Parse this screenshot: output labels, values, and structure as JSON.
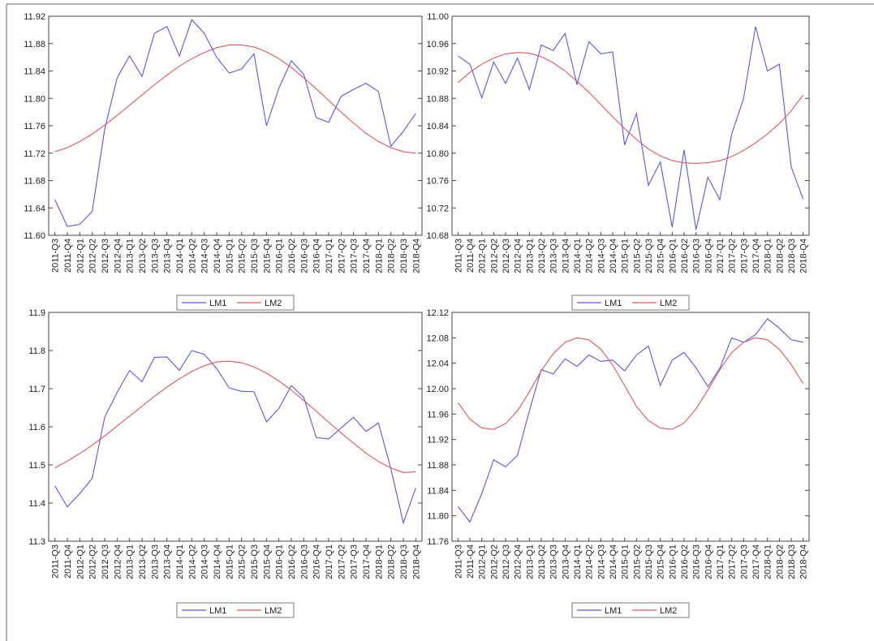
{
  "chart_data": [
    {
      "type": "line",
      "categories": [
        "2011-Q3",
        "2011-Q4",
        "2012-Q1",
        "2012-Q2",
        "2012-Q3",
        "2012-Q4",
        "2013-Q1",
        "2013-Q2",
        "2013-Q3",
        "2013-Q4",
        "2014-Q1",
        "2014-Q2",
        "2014-Q3",
        "2014-Q4",
        "2015-Q1",
        "2015-Q2",
        "2015-Q3",
        "2015-Q4",
        "2016-Q1",
        "2016-Q2",
        "2016-Q3",
        "2016-Q4",
        "2017-Q1",
        "2017-Q2",
        "2017-Q3",
        "2017-Q4",
        "2018-Q1",
        "2018-Q2",
        "2018-Q3",
        "2018-Q4"
      ],
      "series": [
        {
          "name": "LM1",
          "color": "#5858e8",
          "values": [
            11.652,
            11.613,
            11.616,
            11.635,
            11.755,
            11.83,
            11.862,
            11.832,
            11.895,
            11.905,
            11.862,
            11.915,
            11.895,
            11.86,
            11.837,
            11.843,
            11.865,
            11.76,
            11.815,
            11.855,
            11.835,
            11.772,
            11.765,
            11.803,
            11.813,
            11.822,
            11.81,
            11.73,
            11.752,
            11.778
          ]
        },
        {
          "name": "LM2",
          "color": "#e05858",
          "values": [
            11.722,
            11.728,
            11.737,
            11.748,
            11.761,
            11.775,
            11.79,
            11.805,
            11.82,
            11.834,
            11.847,
            11.858,
            11.867,
            11.874,
            11.878,
            11.878,
            11.875,
            11.868,
            11.858,
            11.845,
            11.83,
            11.814,
            11.797,
            11.78,
            11.764,
            11.749,
            11.737,
            11.728,
            11.722,
            11.72
          ]
        }
      ],
      "ylim": [
        11.6,
        11.92
      ],
      "yticks": [
        {
          "value": 11.6,
          "label": "11.60"
        },
        11.64,
        11.68,
        11.72,
        11.76,
        {
          "value": 11.8,
          "label": "11.80"
        },
        11.84,
        11.88,
        11.92
      ],
      "grid": false,
      "legend": "bottom"
    },
    {
      "type": "line",
      "categories": [
        "2011-Q3",
        "2011-Q4",
        "2012-Q1",
        "2012-Q2",
        "2012-Q3",
        "2012-Q4",
        "2013-Q1",
        "2013-Q2",
        "2013-Q3",
        "2013-Q4",
        "2014-Q1",
        "2014-Q2",
        "2014-Q3",
        "2014-Q4",
        "2015-Q1",
        "2015-Q2",
        "2015-Q3",
        "2015-Q4",
        "2016-Q1",
        "2016-Q2",
        "2016-Q3",
        "2016-Q4",
        "2017-Q1",
        "2017-Q2",
        "2017-Q3",
        "2017-Q4",
        "2018-Q1",
        "2018-Q2",
        "2018-Q3",
        "2018-Q4"
      ],
      "series": [
        {
          "name": "LM1",
          "color": "#5858e8",
          "values": [
            10.942,
            10.93,
            10.881,
            10.933,
            10.902,
            10.939,
            10.893,
            10.958,
            10.95,
            10.975,
            10.9,
            10.963,
            10.945,
            10.948,
            10.812,
            10.858,
            10.753,
            10.787,
            10.692,
            10.805,
            10.688,
            10.765,
            10.732,
            10.828,
            10.88,
            10.985,
            10.92,
            10.93,
            10.78,
            10.733
          ]
        },
        {
          "name": "LM2",
          "color": "#e05858",
          "values": [
            10.903,
            10.918,
            10.93,
            10.939,
            10.945,
            10.947,
            10.946,
            10.941,
            10.932,
            10.92,
            10.905,
            10.889,
            10.871,
            10.853,
            10.836,
            10.82,
            10.806,
            10.796,
            10.789,
            10.786,
            10.785,
            10.786,
            10.789,
            10.795,
            10.804,
            10.815,
            10.828,
            10.843,
            10.862,
            10.885
          ]
        }
      ],
      "ylim": [
        10.68,
        11.0
      ],
      "yticks": [
        10.68,
        10.72,
        10.76,
        {
          "value": 10.8,
          "label": "10.80"
        },
        10.84,
        10.88,
        10.92,
        10.96,
        {
          "value": 11.0,
          "label": "11.00"
        }
      ],
      "grid": false,
      "legend": "bottom"
    },
    {
      "type": "line",
      "categories": [
        "2011-Q3",
        "2011-Q4",
        "2012-Q1",
        "2012-Q2",
        "2012-Q3",
        "2012-Q4",
        "2013-Q1",
        "2013-Q2",
        "2013-Q3",
        "2013-Q4",
        "2014-Q1",
        "2014-Q2",
        "2014-Q3",
        "2014-Q4",
        "2015-Q1",
        "2015-Q2",
        "2015-Q3",
        "2015-Q4",
        "2016-Q1",
        "2016-Q2",
        "2016-Q3",
        "2016-Q4",
        "2017-Q1",
        "2017-Q2",
        "2017-Q3",
        "2017-Q4",
        "2018-Q1",
        "2018-Q2",
        "2018-Q3",
        "2018-Q4"
      ],
      "series": [
        {
          "name": "LM1",
          "color": "#5858e8",
          "values": [
            11.445,
            11.39,
            11.425,
            11.465,
            11.625,
            11.69,
            11.748,
            11.718,
            11.782,
            11.783,
            11.748,
            11.8,
            11.79,
            11.753,
            11.702,
            11.693,
            11.692,
            11.613,
            11.648,
            11.708,
            11.677,
            11.572,
            11.568,
            11.597,
            11.625,
            11.588,
            11.61,
            11.49,
            11.348,
            11.44
          ]
        },
        {
          "name": "LM2",
          "color": "#e05858",
          "values": [
            11.492,
            11.51,
            11.53,
            11.552,
            11.576,
            11.602,
            11.628,
            11.654,
            11.68,
            11.704,
            11.726,
            11.745,
            11.76,
            11.77,
            11.772,
            11.768,
            11.757,
            11.741,
            11.72,
            11.696,
            11.669,
            11.641,
            11.612,
            11.584,
            11.557,
            11.531,
            11.509,
            11.492,
            11.48,
            11.482
          ]
        }
      ],
      "ylim": [
        11.3,
        11.9
      ],
      "yticks": [
        11.3,
        11.4,
        11.5,
        11.6,
        11.7,
        11.8,
        11.9
      ],
      "grid": false,
      "legend": "bottom"
    },
    {
      "type": "line",
      "categories": [
        "2011-Q3",
        "2011-Q4",
        "2012-Q1",
        "2012-Q2",
        "2012-Q3",
        "2012-Q4",
        "2013-Q1",
        "2013-Q2",
        "2013-Q3",
        "2013-Q4",
        "2014-Q1",
        "2014-Q2",
        "2014-Q3",
        "2014-Q4",
        "2015-Q1",
        "2015-Q2",
        "2015-Q3",
        "2015-Q4",
        "2016-Q1",
        "2016-Q2",
        "2016-Q3",
        "2016-Q4",
        "2017-Q1",
        "2017-Q2",
        "2017-Q3",
        "2017-Q4",
        "2018-Q1",
        "2018-Q2",
        "2018-Q3",
        "2018-Q4"
      ],
      "series": [
        {
          "name": "LM1",
          "color": "#5858e8",
          "values": [
            11.815,
            11.79,
            11.835,
            11.888,
            11.877,
            11.895,
            11.965,
            12.03,
            12.023,
            12.047,
            12.035,
            12.053,
            12.043,
            12.045,
            12.028,
            12.053,
            12.067,
            12.005,
            12.045,
            12.057,
            12.033,
            12.003,
            12.032,
            12.08,
            12.073,
            12.085,
            12.11,
            12.095,
            12.077,
            12.073
          ]
        },
        {
          "name": "LM2",
          "color": "#e05858",
          "values": [
            11.978,
            11.952,
            11.938,
            11.936,
            11.945,
            11.965,
            11.995,
            12.028,
            12.055,
            12.073,
            12.08,
            12.077,
            12.062,
            12.037,
            12.005,
            11.972,
            11.95,
            11.938,
            11.936,
            11.946,
            11.968,
            11.998,
            12.03,
            12.057,
            12.073,
            12.08,
            12.077,
            12.062,
            12.038,
            12.008
          ]
        }
      ],
      "ylim": [
        11.76,
        12.12
      ],
      "yticks": [
        11.76,
        {
          "value": 11.8,
          "label": "11.80"
        },
        11.84,
        11.88,
        11.92,
        11.96,
        {
          "value": 12.0,
          "label": "12.00"
        },
        12.04,
        12.08,
        12.12
      ],
      "grid": false,
      "legend": "bottom"
    }
  ]
}
